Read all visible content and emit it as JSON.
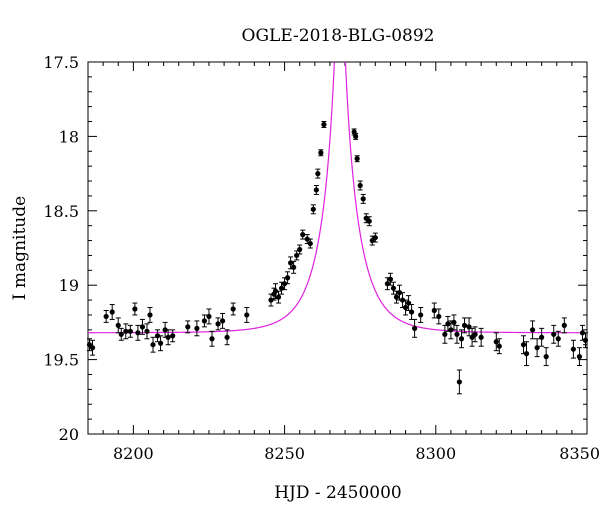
{
  "chart_data": {
    "type": "scatter",
    "title": "OGLE-2018-BLG-0892",
    "xlabel": "HJD - 2450000",
    "ylabel": "I magnitude",
    "xlim": [
      8185,
      8350
    ],
    "ylim": [
      17.5,
      20
    ],
    "y_inverted": true,
    "x_ticks": [
      8200,
      8250,
      8300,
      8350
    ],
    "y_ticks": [
      17.5,
      18,
      18.5,
      19,
      19.5,
      20
    ],
    "x_tick_labels": [
      "8200",
      "8250",
      "8300",
      "8350"
    ],
    "y_tick_labels": [
      "17.5",
      "18",
      "18.5",
      "19",
      "19.5",
      "20"
    ],
    "grid": false,
    "model_color": "#e020e0",
    "point_color": "#000000",
    "model": {
      "t0": 8268.3,
      "u0": 0.09,
      "tE": 11.0,
      "baseline_mag": 19.32,
      "fs": 1.0
    },
    "series": [
      {
        "points": [
          [
            8185.5,
            19.4,
            0.04
          ],
          [
            8186.5,
            19.42,
            0.05
          ],
          [
            8191.0,
            19.21,
            0.04
          ],
          [
            8193.0,
            19.18,
            0.05
          ],
          [
            8195.0,
            19.27,
            0.05
          ],
          [
            8196.0,
            19.33,
            0.04
          ],
          [
            8197.5,
            19.31,
            0.05
          ],
          [
            8199.0,
            19.31,
            0.04
          ],
          [
            8200.5,
            19.16,
            0.04
          ],
          [
            8201.5,
            19.32,
            0.05
          ],
          [
            8203.0,
            19.28,
            0.05
          ],
          [
            8204.5,
            19.31,
            0.05
          ],
          [
            8205.5,
            19.2,
            0.05
          ],
          [
            8206.5,
            19.4,
            0.05
          ],
          [
            8208.0,
            19.34,
            0.04
          ],
          [
            8209.0,
            19.39,
            0.05
          ],
          [
            8210.5,
            19.3,
            0.05
          ],
          [
            8211.5,
            19.35,
            0.05
          ],
          [
            8213.0,
            19.34,
            0.04
          ],
          [
            8218.0,
            19.28,
            0.04
          ],
          [
            8221.0,
            19.29,
            0.05
          ],
          [
            8223.5,
            19.24,
            0.04
          ],
          [
            8225.0,
            19.21,
            0.05
          ],
          [
            8226.0,
            19.36,
            0.05
          ],
          [
            8228.0,
            19.26,
            0.04
          ],
          [
            8229.5,
            19.24,
            0.05
          ],
          [
            8231.0,
            19.35,
            0.05
          ],
          [
            8233.0,
            19.16,
            0.04
          ],
          [
            8237.5,
            19.2,
            0.05
          ],
          [
            8245.5,
            19.1,
            0.04
          ],
          [
            8246.5,
            19.06,
            0.04
          ],
          [
            8247.0,
            19.04,
            0.05
          ],
          [
            8248.0,
            19.08,
            0.04
          ],
          [
            8249.0,
            19.02,
            0.04
          ],
          [
            8250.0,
            18.99,
            0.04
          ],
          [
            8251.0,
            18.95,
            0.04
          ],
          [
            8252.0,
            18.85,
            0.04
          ],
          [
            8253.0,
            18.88,
            0.04
          ],
          [
            8254.0,
            18.8,
            0.03
          ],
          [
            8255.0,
            18.76,
            0.03
          ],
          [
            8256.0,
            18.66,
            0.03
          ],
          [
            8257.5,
            18.69,
            0.03
          ],
          [
            8258.5,
            18.72,
            0.03
          ],
          [
            8259.5,
            18.49,
            0.03
          ],
          [
            8260.5,
            18.36,
            0.03
          ],
          [
            8261.0,
            18.25,
            0.03
          ],
          [
            8262.0,
            18.11,
            0.02
          ],
          [
            8263.0,
            17.92,
            0.02
          ],
          [
            8273.0,
            17.97,
            0.02
          ],
          [
            8273.5,
            18.0,
            0.02
          ],
          [
            8274.0,
            18.15,
            0.02
          ],
          [
            8275.0,
            18.33,
            0.03
          ],
          [
            8276.0,
            18.42,
            0.03
          ],
          [
            8277.0,
            18.55,
            0.03
          ],
          [
            8278.0,
            18.57,
            0.03
          ],
          [
            8279.0,
            18.7,
            0.03
          ],
          [
            8280.0,
            18.68,
            0.03
          ],
          [
            8284.0,
            18.99,
            0.04
          ],
          [
            8285.0,
            18.96,
            0.04
          ],
          [
            8286.0,
            19.02,
            0.04
          ],
          [
            8287.0,
            19.08,
            0.04
          ],
          [
            8288.0,
            19.05,
            0.05
          ],
          [
            8289.0,
            19.1,
            0.05
          ],
          [
            8290.0,
            19.15,
            0.05
          ],
          [
            8291.0,
            19.12,
            0.05
          ],
          [
            8292.0,
            19.18,
            0.05
          ],
          [
            8293.0,
            19.29,
            0.06
          ],
          [
            8295.0,
            19.2,
            0.05
          ],
          [
            8299.5,
            19.17,
            0.05
          ],
          [
            8301.0,
            19.21,
            0.05
          ],
          [
            8303.0,
            19.33,
            0.06
          ],
          [
            8304.0,
            19.26,
            0.05
          ],
          [
            8305.0,
            19.3,
            0.06
          ],
          [
            8306.0,
            19.25,
            0.05
          ],
          [
            8307.0,
            19.33,
            0.06
          ],
          [
            8307.8,
            19.65,
            0.08
          ],
          [
            8308.5,
            19.36,
            0.06
          ],
          [
            8309.5,
            19.27,
            0.05
          ],
          [
            8311.0,
            19.28,
            0.06
          ],
          [
            8312.0,
            19.35,
            0.06
          ],
          [
            8313.0,
            19.33,
            0.05
          ],
          [
            8315.0,
            19.35,
            0.06
          ],
          [
            8320.0,
            19.38,
            0.06
          ],
          [
            8321.0,
            19.41,
            0.05
          ],
          [
            8329.0,
            19.4,
            0.06
          ],
          [
            8330.0,
            19.46,
            0.08
          ],
          [
            8332.0,
            19.3,
            0.06
          ],
          [
            8333.5,
            19.42,
            0.06
          ],
          [
            8335.0,
            19.35,
            0.06
          ],
          [
            8336.5,
            19.48,
            0.06
          ],
          [
            8339.0,
            19.33,
            0.06
          ],
          [
            8340.5,
            19.36,
            0.05
          ],
          [
            8342.5,
            19.27,
            0.05
          ],
          [
            8345.5,
            19.43,
            0.06
          ],
          [
            8347.5,
            19.48,
            0.06
          ],
          [
            8348.5,
            19.32,
            0.05
          ],
          [
            8349.5,
            19.37,
            0.05
          ]
        ]
      }
    ]
  }
}
